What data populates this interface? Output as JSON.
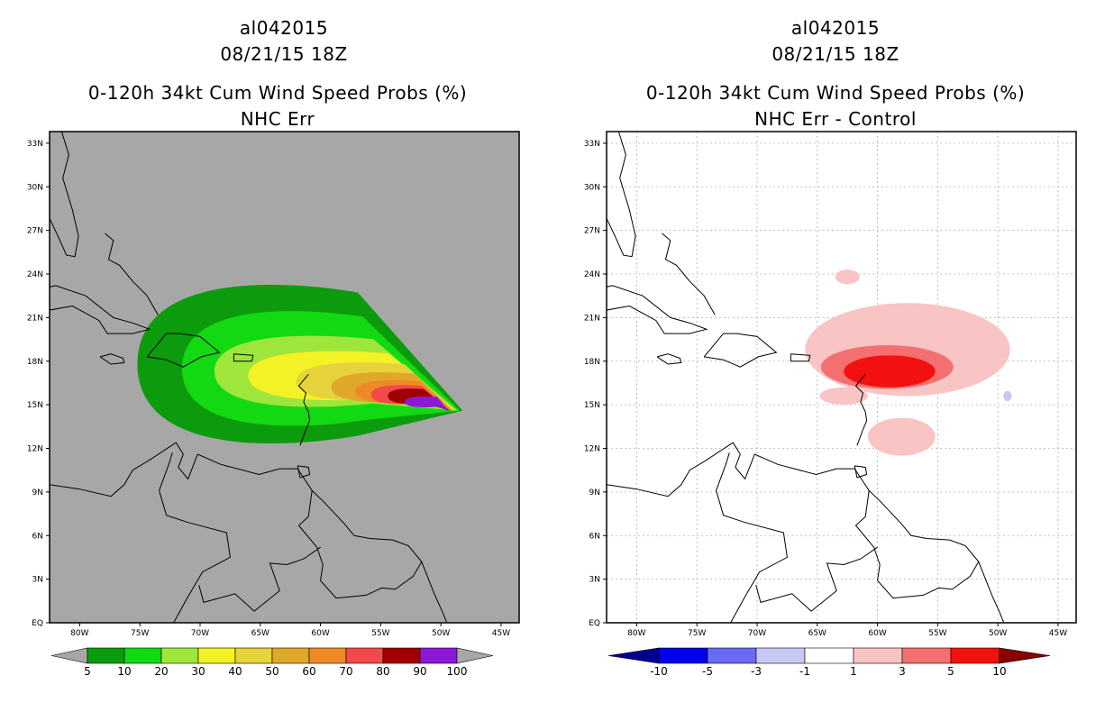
{
  "chart_data": [
    {
      "type": "heatmap",
      "title_lines": [
        "al042015",
        "08/21/15 18Z",
        "0-120h 34kt Cum Wind Speed Probs (%)",
        "NHC Err"
      ],
      "x_tick_labels": [
        "80W",
        "75W",
        "70W",
        "65W",
        "60W",
        "55W",
        "50W",
        "45W"
      ],
      "x_tick_values": [
        -80,
        -75,
        -70,
        -65,
        -60,
        -55,
        -50,
        -45
      ],
      "y_tick_labels": [
        "EQ",
        "3N",
        "6N",
        "9N",
        "12N",
        "15N",
        "18N",
        "21N",
        "24N",
        "27N",
        "30N",
        "33N"
      ],
      "y_tick_values": [
        0,
        3,
        6,
        9,
        12,
        15,
        18,
        21,
        24,
        27,
        30,
        33
      ],
      "xlim": [
        -82.5,
        -43.5
      ],
      "ylim": [
        0,
        33.8
      ],
      "grid": false,
      "background_color": "#a7a7a7",
      "colorbar_labels": [
        "5",
        "10",
        "20",
        "30",
        "40",
        "50",
        "60",
        "70",
        "80",
        "90",
        "100"
      ],
      "colorbar_colors": [
        "#0c9b0c",
        "#12d912",
        "#9ee63c",
        "#f2f227",
        "#e6d23a",
        "#e0a82a",
        "#ee8a26",
        "#f24a4a",
        "#a00000",
        "#8d17d6"
      ],
      "colorbar_end_colors": [
        "#a7a7a7",
        "#a7a7a7"
      ],
      "contours": [
        {
          "level": 5,
          "center": [
            -63.0,
            17.8
          ],
          "rx": 12.2,
          "ry": 5.8,
          "tail_lon": -48.2,
          "tail_lat": 14.6
        },
        {
          "level": 10,
          "center": [
            -61.5,
            17.5
          ],
          "rx": 10.0,
          "ry": 4.2,
          "tail_lon": -48.4,
          "tail_lat": 14.6
        },
        {
          "level": 20,
          "center": [
            -60.0,
            17.3
          ],
          "rx": 8.8,
          "ry": 2.6,
          "tail_lon": -48.6,
          "tail_lat": 14.6
        },
        {
          "level": 30,
          "center": [
            -58.2,
            17.0
          ],
          "rx": 7.8,
          "ry": 1.8,
          "tail_lon": -48.8,
          "tail_lat": 14.6
        },
        {
          "level": 40,
          "center": [
            -56.0,
            16.6
          ],
          "rx": 6.0,
          "ry": 1.4,
          "tail_lon": -48.9,
          "tail_lat": 14.6
        },
        {
          "level": 50,
          "center": [
            -54.5,
            16.2
          ],
          "rx": 4.6,
          "ry": 1.1,
          "tail_lon": -49.0,
          "tail_lat": 14.6
        },
        {
          "level": 60,
          "center": [
            -53.5,
            15.9
          ],
          "rx": 3.6,
          "ry": 0.85,
          "tail_lon": -49.1,
          "tail_lat": 14.6
        },
        {
          "level": 70,
          "center": [
            -53.0,
            15.7
          ],
          "rx": 2.8,
          "ry": 0.7,
          "tail_lon": -49.2,
          "tail_lat": 14.6
        },
        {
          "level": 80,
          "center": [
            -52.4,
            15.6
          ],
          "rx": 2.0,
          "ry": 0.55,
          "tail_lon": -49.3,
          "tail_lat": 14.6
        },
        {
          "level": 90,
          "center": [
            -51.2,
            15.2
          ],
          "rx": 1.8,
          "ry": 0.4,
          "tail_lon": -49.4,
          "tail_lat": 14.6
        }
      ]
    },
    {
      "type": "heatmap",
      "title_lines": [
        "al042015",
        "08/21/15 18Z",
        "0-120h 34kt Cum Wind Speed Probs (%)",
        "NHC Err - Control"
      ],
      "x_tick_labels": [
        "80W",
        "75W",
        "70W",
        "65W",
        "60W",
        "55W",
        "50W",
        "45W"
      ],
      "x_tick_values": [
        -80,
        -75,
        -70,
        -65,
        -60,
        -55,
        -50,
        -45
      ],
      "y_tick_labels": [
        "EQ",
        "3N",
        "6N",
        "9N",
        "12N",
        "15N",
        "18N",
        "21N",
        "24N",
        "27N",
        "30N",
        "33N"
      ],
      "y_tick_values": [
        0,
        3,
        6,
        9,
        12,
        15,
        18,
        21,
        24,
        27,
        30,
        33
      ],
      "xlim": [
        -82.5,
        -43.5
      ],
      "ylim": [
        0,
        33.8
      ],
      "grid": true,
      "background_color": "#ffffff",
      "colorbar_labels": [
        "-10",
        "-5",
        "-3",
        "-1",
        "1",
        "3",
        "5",
        "10"
      ],
      "colorbar_colors": [
        "#0000ee",
        "#6a6af2",
        "#c8c8f4",
        "#ffffff",
        "#f8c4c4",
        "#f47070",
        "#f21010"
      ],
      "colorbar_end_colors": [
        "#000090",
        "#8a0000"
      ],
      "contours": [
        {
          "level": 1,
          "center": [
            -57.5,
            18.8
          ],
          "rx": 8.5,
          "ry": 3.2
        },
        {
          "level": 1,
          "center": [
            -58.0,
            12.8
          ],
          "rx": 2.8,
          "ry": 1.3
        },
        {
          "level": 1,
          "center": [
            -62.5,
            23.8
          ],
          "rx": 1.0,
          "ry": 0.5
        },
        {
          "level": 1,
          "center": [
            -62.8,
            15.6
          ],
          "rx": 2.0,
          "ry": 0.6
        },
        {
          "level": 3,
          "center": [
            -59.2,
            17.6
          ],
          "rx": 5.5,
          "ry": 1.5
        },
        {
          "level": 5,
          "center": [
            -59.0,
            17.3
          ],
          "rx": 3.8,
          "ry": 1.1
        },
        {
          "level": -1,
          "center": [
            -49.2,
            15.6
          ],
          "rx": 0.35,
          "ry": 0.35
        }
      ]
    }
  ]
}
